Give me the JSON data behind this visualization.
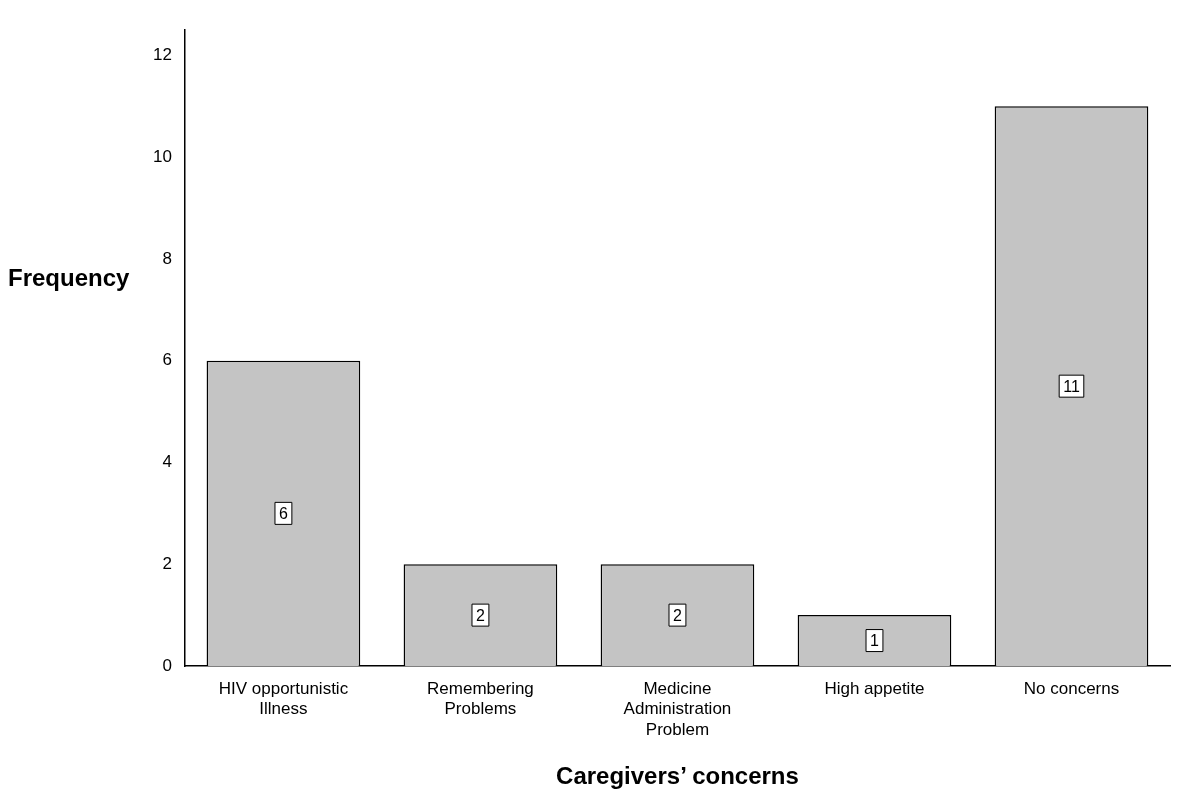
{
  "chart_data": {
    "type": "bar",
    "xlabel": "Caregivers’ concerns",
    "ylabel": "Frequency",
    "categories": [
      "HIV opportunistic Illness",
      "Remembering Problems",
      "Medicine Administration Problem",
      "High appetite",
      "No concerns"
    ],
    "values": [
      6,
      2,
      2,
      1,
      11
    ],
    "color": "#c4c4c4",
    "ylim": [
      0,
      12.5
    ],
    "yticks": [
      0,
      2,
      4,
      6,
      8,
      10,
      12
    ],
    "grid": false,
    "legend": false,
    "data_labels": true
  }
}
